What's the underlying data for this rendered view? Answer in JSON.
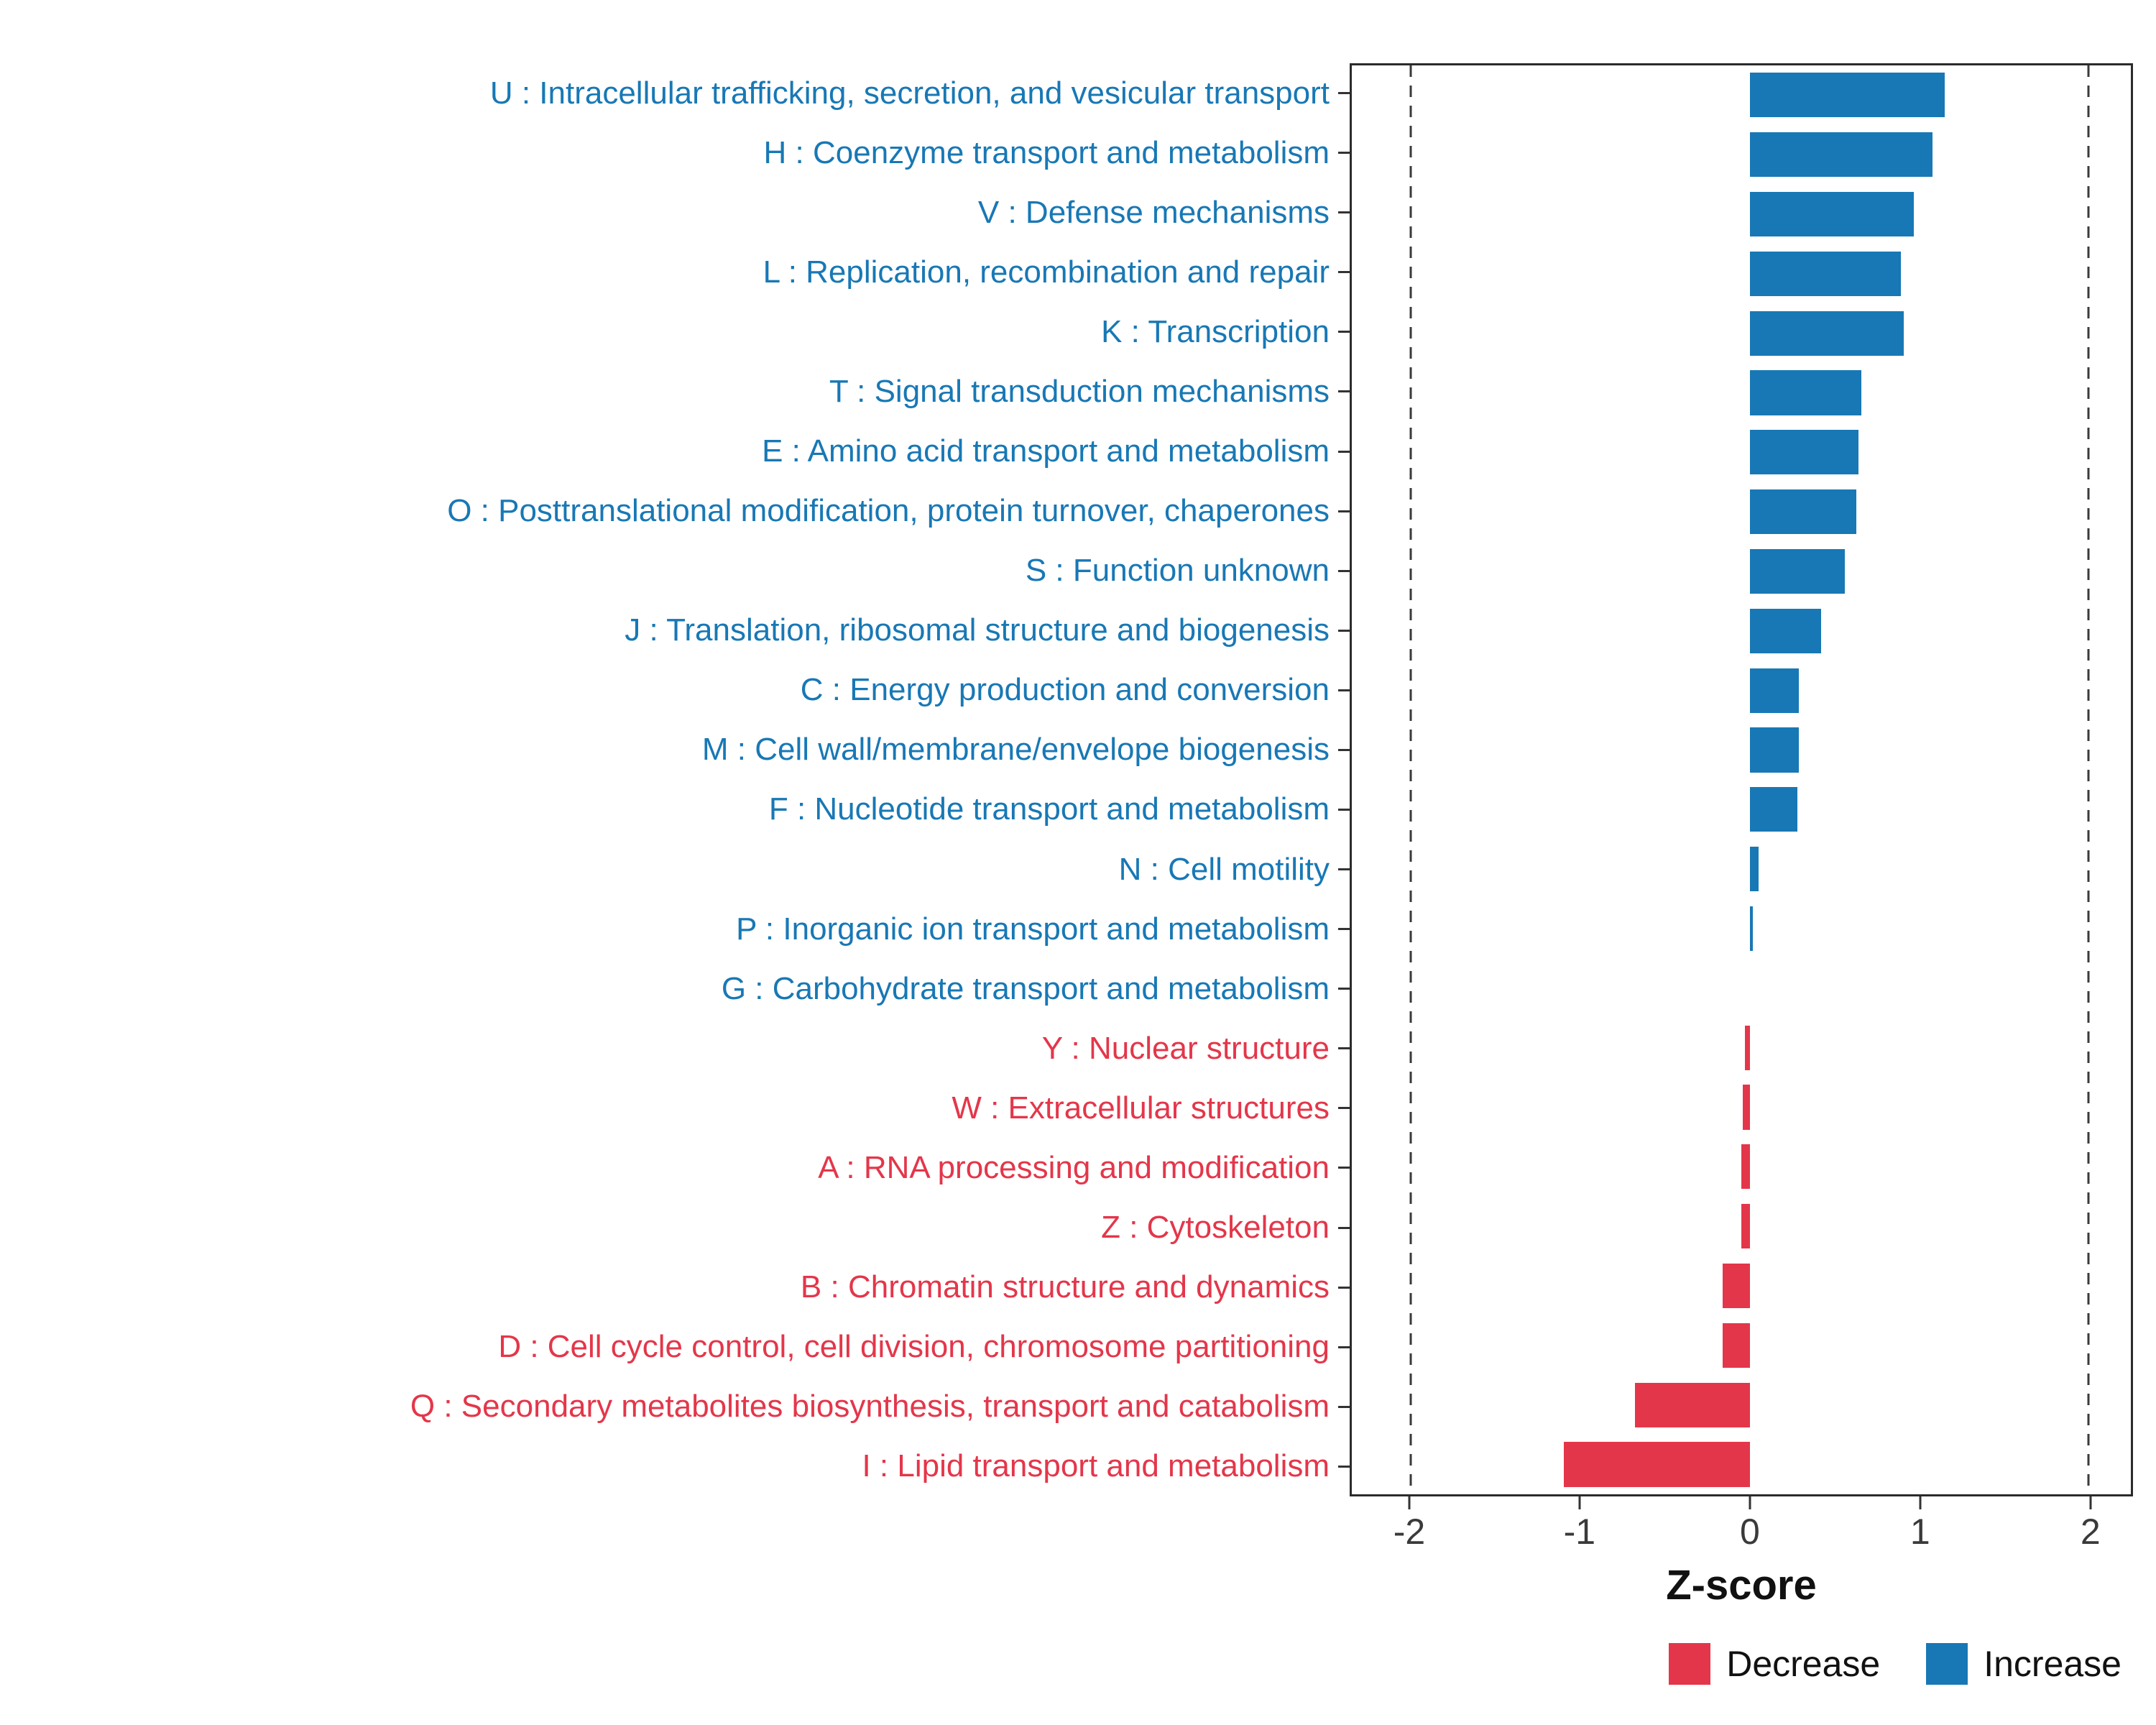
{
  "chart_data": {
    "type": "bar",
    "orientation": "horizontal",
    "title": "",
    "xlabel": "Z-score",
    "xlim": [
      -2.35,
      2.25
    ],
    "x_ticks": [
      -2,
      -1,
      0,
      1,
      2
    ],
    "dashed_lines": [
      -2,
      2
    ],
    "grid": "off",
    "legend_position": "bottom-right",
    "colors": {
      "increase": "#1878b5",
      "decrease": "#e4364a"
    },
    "legend": [
      {
        "label": "Decrease",
        "color": "#e4364a"
      },
      {
        "label": "Increase",
        "color": "#1878b5"
      }
    ],
    "categories": [
      {
        "label": "U : Intracellular trafficking, secretion, and vesicular transport",
        "value": 1.15,
        "group": "increase"
      },
      {
        "label": "H : Coenzyme transport and metabolism",
        "value": 1.08,
        "group": "increase"
      },
      {
        "label": "V : Defense mechanisms",
        "value": 0.97,
        "group": "increase"
      },
      {
        "label": "L : Replication, recombination and repair",
        "value": 0.89,
        "group": "increase"
      },
      {
        "label": "K : Transcription",
        "value": 0.91,
        "group": "increase"
      },
      {
        "label": "T : Signal transduction mechanisms",
        "value": 0.66,
        "group": "increase"
      },
      {
        "label": "E : Amino acid transport and metabolism",
        "value": 0.64,
        "group": "increase"
      },
      {
        "label": "O : Posttranslational modification, protein turnover, chaperones",
        "value": 0.63,
        "group": "increase"
      },
      {
        "label": "S : Function unknown",
        "value": 0.56,
        "group": "increase"
      },
      {
        "label": "J : Translation, ribosomal structure and biogenesis",
        "value": 0.42,
        "group": "increase"
      },
      {
        "label": "C : Energy production and conversion",
        "value": 0.29,
        "group": "increase"
      },
      {
        "label": "M : Cell wall/membrane/envelope biogenesis",
        "value": 0.29,
        "group": "increase"
      },
      {
        "label": "F : Nucleotide transport and metabolism",
        "value": 0.28,
        "group": "increase"
      },
      {
        "label": "N : Cell motility",
        "value": 0.05,
        "group": "increase"
      },
      {
        "label": "P : Inorganic ion transport and metabolism",
        "value": 0.02,
        "group": "increase"
      },
      {
        "label": "G : Carbohydrate transport and metabolism",
        "value": 0.0,
        "group": "increase"
      },
      {
        "label": "Y : Nuclear structure",
        "value": -0.03,
        "group": "decrease"
      },
      {
        "label": "W : Extracellular structures",
        "value": -0.04,
        "group": "decrease"
      },
      {
        "label": "A : RNA processing and modification",
        "value": -0.05,
        "group": "decrease"
      },
      {
        "label": "Z : Cytoskeleton",
        "value": -0.05,
        "group": "decrease"
      },
      {
        "label": "B : Chromatin structure and dynamics",
        "value": -0.16,
        "group": "decrease"
      },
      {
        "label": "D : Cell cycle control, cell division, chromosome partitioning",
        "value": -0.16,
        "group": "decrease"
      },
      {
        "label": "Q : Secondary metabolites biosynthesis, transport and catabolism",
        "value": -0.68,
        "group": "decrease"
      },
      {
        "label": "I : Lipid transport and metabolism",
        "value": -1.1,
        "group": "decrease"
      }
    ]
  }
}
